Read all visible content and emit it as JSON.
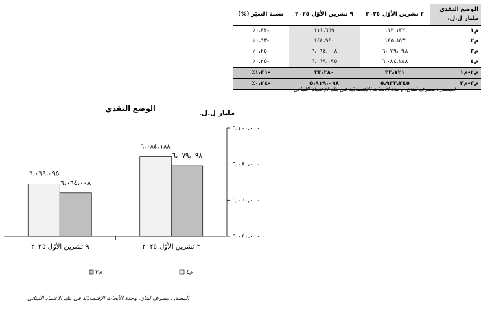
{
  "table": {
    "headers": [
      "الوضع النقدي مليار ل.ل.",
      "٢ تشرين الأوّل ٢٠٢٥",
      "٩ تشرين الأوّل ٢٠٢٥",
      "نسبة التغيّر (%)"
    ],
    "rows": [
      {
        "label": "م١",
        "a": "١١٢،١٣٢",
        "b": "١١١،٦٥٩",
        "change": "-٠،٤٢٪"
      },
      {
        "label": "م٢",
        "a": "١٤٥،٨٥٣",
        "b": "١٤٤،٩٤٠",
        "change": "-٠،٦٣٪"
      },
      {
        "label": "م٣",
        "a": "٦،٠٧٩،٠٩٨",
        "b": "٦،٠٦٤،٠٠٨",
        "change": "-٠،٢٥٪"
      },
      {
        "label": "م٤",
        "a": "٦،٠٨٤،١٨٨",
        "b": "٦،٠٦٩،٠٩٥",
        "change": "-٠،٢٥٪"
      },
      {
        "label": "م٢-م١",
        "a": "٣٣،٧٢١",
        "b": "٣٣،٢٨٠",
        "change": "-١،٣١٪"
      },
      {
        "label": "م٣-م٢",
        "a": "٥،٩٣٣،٢٤٥",
        "b": "٥،٩١٩،٠٦٨",
        "change": "-٠،٢٤٪"
      }
    ],
    "source": "المصدر: مصرف لبنان، وحدة الأبحاث الإقتصاديّة في بنك الإعتماد اللبناني"
  },
  "chart_data": {
    "type": "bar",
    "title": "الوضع النقدي",
    "unit_label": "مليار ل.ل.",
    "categories": [
      "٢ تشرين الأوّل ٢٠٢٥",
      "٩ تشرين الأوّل ٢٠٢٥"
    ],
    "series": [
      {
        "name": "م٤",
        "values": [
          6084188,
          6069095
        ],
        "labels": [
          "٦،٠٨٤،١٨٨",
          "٦،٠٦٩،٠٩٥"
        ],
        "color": "#f2f2f2"
      },
      {
        "name": "م٣",
        "values": [
          6079098,
          6064008
        ],
        "labels": [
          "٦،٠٧٩،٠٩٨",
          "٦،٠٦٤،٠٠٨"
        ],
        "color": "#bfbfbf"
      }
    ],
    "ylim": [
      6040000,
      6100000
    ],
    "yticks": [
      6040000,
      6060000,
      6080000,
      6100000
    ],
    "ytick_labels": [
      "٦،٠٤٠،٠٠٠",
      "٦،٠٦٠،٠٠٠",
      "٦،٠٨٠،٠٠٠",
      "٦،١٠٠،٠٠٠"
    ],
    "y_axis_side": "right",
    "grid": false,
    "legend_position": "bottom",
    "source": "المصدر: مصرف لبنان، وحدة الأبحاث الإقتصاديّة في بنك الإعتماد اللبناني"
  }
}
